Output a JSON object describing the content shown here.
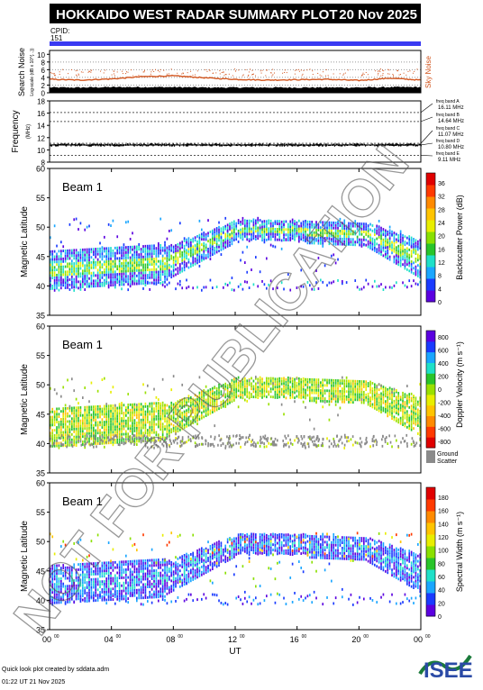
{
  "header": {
    "title": "HOKKAIDO WEST RADAR SUMMARY PLOT",
    "date": "20 Nov 2025",
    "cpid_label": "CPID:",
    "cpid_value": "151",
    "accent_color": "#3a3af2"
  },
  "watermark": "NOT FOR PUBLICATION",
  "footer": {
    "credit": "Quick look plot created by sddata.adm",
    "timestamp": "01:22 UT 21 Nov 2025",
    "logo": "ISEE"
  },
  "chart_data": [
    {
      "type": "line",
      "id": "noise",
      "ylabel": "Search Noise",
      "ylabel_sub": "Log-scale (dB x 10^{...})",
      "right_label": "Sky Noise",
      "yticks": [
        0,
        2,
        4,
        6,
        8,
        10
      ],
      "ylim": [
        0,
        11
      ],
      "series": [
        {
          "name": "Search Noise",
          "color": "#000000",
          "x": [
            0,
            2,
            4,
            6,
            8,
            10,
            12,
            14,
            16,
            18,
            20,
            22,
            24
          ],
          "values": [
            1.2,
            1.2,
            1.3,
            1.3,
            1.3,
            1.2,
            1.2,
            1.2,
            1.2,
            1.2,
            1.2,
            1.3,
            1.3
          ]
        },
        {
          "name": "Sky Noise",
          "color": "#d2541c",
          "x": [
            0,
            2,
            4,
            6,
            8,
            10,
            12,
            14,
            16,
            18,
            20,
            22,
            24
          ],
          "values": [
            3.5,
            3.3,
            3.6,
            4.2,
            4.4,
            3.9,
            3.5,
            3.3,
            3.4,
            3.5,
            3.2,
            3.8,
            3.3
          ]
        }
      ]
    },
    {
      "type": "line",
      "id": "frequency",
      "ylabel": "Frequency",
      "ylabel_unit": "(MHz)",
      "yticks": [
        8,
        10,
        12,
        14,
        16,
        18
      ],
      "ylim": [
        8,
        18
      ],
      "bands": [
        {
          "label": "freq band A",
          "value": "16.11 MHz",
          "y": 16.11
        },
        {
          "label": "freq band B",
          "value": "14.64 MHz",
          "y": 14.64
        },
        {
          "label": "freq band C",
          "value": "11.07 MHz",
          "y": 11.07
        },
        {
          "label": "freq band D",
          "value": "10.80 MHz",
          "y": 10.8
        },
        {
          "label": "freq band E",
          "value": "9.11 MHz",
          "y": 9.11
        }
      ],
      "active_y": 10.8
    },
    {
      "type": "heatmap",
      "id": "power",
      "beam": "Beam  1",
      "ylabel": "Magnetic Latitude",
      "yticks": [
        35,
        40,
        45,
        50,
        55,
        60
      ],
      "ylim": [
        35,
        60
      ],
      "colorbar_label": "Backscatter Power (dB)",
      "colorbar_ticks": [
        0,
        4,
        8,
        12,
        16,
        20,
        24,
        28,
        32,
        36
      ],
      "colorbar_range": [
        0,
        39
      ],
      "colors": [
        "#5b00e0",
        "#1a3bff",
        "#1aa6ff",
        "#1fe0c8",
        "#29c42a",
        "#8ae000",
        "#e8ee00",
        "#ffc400",
        "#ff8a00",
        "#ff3a00",
        "#e00000"
      ]
    },
    {
      "type": "heatmap",
      "id": "velocity",
      "beam": "Beam  1",
      "ylabel": "Magnetic Latitude",
      "yticks": [
        35,
        40,
        45,
        50,
        55,
        60
      ],
      "ylim": [
        35,
        60
      ],
      "colorbar_label": "Doppler Velocity (m s⁻¹)",
      "colorbar_ticks": [
        -800,
        -600,
        -400,
        -200,
        0,
        200,
        400,
        600,
        800
      ],
      "colorbar_range": [
        -900,
        900
      ],
      "ground_scatter_label": "Ground Scatter",
      "ground_scatter_color": "#8a8a8a",
      "colors": [
        "#e00000",
        "#ff3a00",
        "#ff8a00",
        "#ffc400",
        "#e8ee00",
        "#9ae000",
        "#29c42a",
        "#1fe0c8",
        "#1aa6ff",
        "#1a3bff",
        "#5b00e0"
      ]
    },
    {
      "type": "heatmap",
      "id": "width",
      "beam": "Beam  1",
      "ylabel": "Magnetic Latitude",
      "yticks": [
        35,
        40,
        45,
        50,
        55,
        60
      ],
      "ylim": [
        35,
        60
      ],
      "xlabel": "UT",
      "xticks": [
        "00",
        "04",
        "08",
        "12",
        "16",
        "20",
        "00"
      ],
      "xtick_sup": "00",
      "colorbar_label": "Spectral Width (m s⁻¹)",
      "colorbar_ticks": [
        0,
        20,
        40,
        60,
        80,
        100,
        120,
        140,
        160,
        180
      ],
      "colorbar_range": [
        0,
        195
      ],
      "colors": [
        "#5b00e0",
        "#1a3bff",
        "#1aa6ff",
        "#1fe0c8",
        "#29c42a",
        "#8ae000",
        "#e8ee00",
        "#ffc400",
        "#ff8a00",
        "#ff3a00",
        "#e00000"
      ]
    }
  ]
}
